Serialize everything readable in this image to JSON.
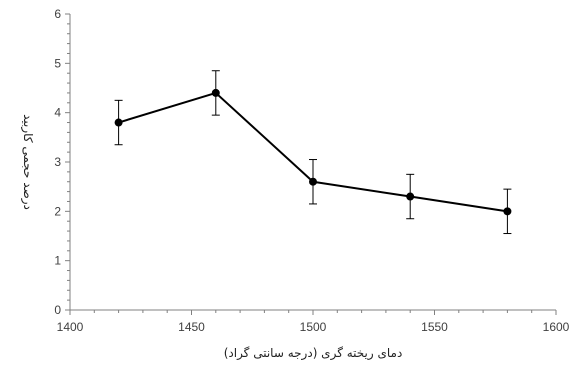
{
  "chart_data": {
    "type": "line",
    "title": "",
    "xlabel": "دمای ریخته گری (درجه سانتی گراد)",
    "ylabel": "درصد حجمی کاربید",
    "xlim": [
      1400,
      1600
    ],
    "ylim": [
      0,
      6
    ],
    "xticks": [
      1400,
      1450,
      1500,
      1550,
      1600
    ],
    "yticks": [
      0,
      1,
      2,
      3,
      4,
      5,
      6
    ],
    "grid": false,
    "legend": "none",
    "series": [
      {
        "x": [
          1420,
          1460,
          1500,
          1540,
          1580
        ],
        "y": [
          3.8,
          4.4,
          2.6,
          2.3,
          2.0
        ],
        "error": [
          0.45,
          0.45,
          0.45,
          0.45,
          0.45
        ]
      }
    ],
    "colors": {
      "line": "#000000",
      "marker": "#000000",
      "axis": "#808080",
      "text": "#404040"
    }
  }
}
